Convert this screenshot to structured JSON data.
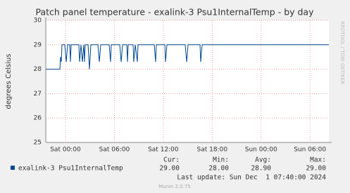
{
  "chart_data": {
    "type": "line",
    "title": "Patch panel temperature - exalink-3 Psu1InternalTemp - by day",
    "y_label": "degrees Celsius",
    "side_text": "RRDTOOL / TOBI OETIKER",
    "x": [
      -2.42,
      -0.69,
      -0.61,
      -0.52,
      -0.43,
      -0.09,
      0.09,
      0.26,
      0.52,
      0.61,
      0.69,
      1.64,
      1.73,
      1.9,
      2.07,
      2.25,
      2.33,
      2.42,
      2.77,
      2.94,
      3.11,
      3.98,
      4.15,
      4.32,
      5.36,
      5.53,
      5.62,
      6.66,
      6.83,
      7.0,
      7.52,
      7.61,
      7.69,
      8.3,
      8.38,
      8.56,
      8.82,
      8.9,
      10.89,
      11.06,
      11.15,
      12.19,
      12.27,
      12.45,
      14.69,
      14.87,
      15.04,
      16.51,
      16.59,
      16.77,
      32.32
    ],
    "series": [
      {
        "name": "exalink-3 Psu1InternalTemp",
        "color": "#00498f",
        "values": [
          28,
          28,
          28.5,
          28.3,
          29,
          29,
          28.3,
          29,
          29,
          28.3,
          29,
          29,
          28.3,
          29,
          28.3,
          29,
          28.3,
          29,
          29,
          28,
          29,
          29,
          28.3,
          29,
          29,
          28.3,
          29,
          29,
          28.3,
          29,
          29,
          28.3,
          29,
          29,
          28.3,
          29,
          28.3,
          29,
          29,
          28.3,
          29,
          29,
          28.3,
          29,
          29,
          28.3,
          29,
          29,
          28.3,
          29,
          29
        ]
      }
    ],
    "xlim": [
      -2.42,
      32.32
    ],
    "xticks": [
      {
        "value": 0,
        "label": "Sat 00:00"
      },
      {
        "value": 6,
        "label": "Sat 06:00"
      },
      {
        "value": 12,
        "label": "Sat 12:00"
      },
      {
        "value": 18,
        "label": "Sat 18:00"
      },
      {
        "value": 24,
        "label": "Sun 00:00"
      },
      {
        "value": 30,
        "label": "Sun 06:00"
      }
    ],
    "ylim": [
      25,
      30
    ],
    "yticks": [
      25,
      26,
      27,
      28,
      29,
      30
    ],
    "grid": true,
    "stats": {
      "headers": [
        "Cur:",
        "Min:",
        "Avg:",
        "Max:"
      ],
      "values": [
        "29.00",
        "28.00",
        "28.90",
        "29.00"
      ]
    },
    "last_update": "Last update: Sun Dec  1 07:40:00 2024",
    "footer": "Munin 2.0.75"
  }
}
